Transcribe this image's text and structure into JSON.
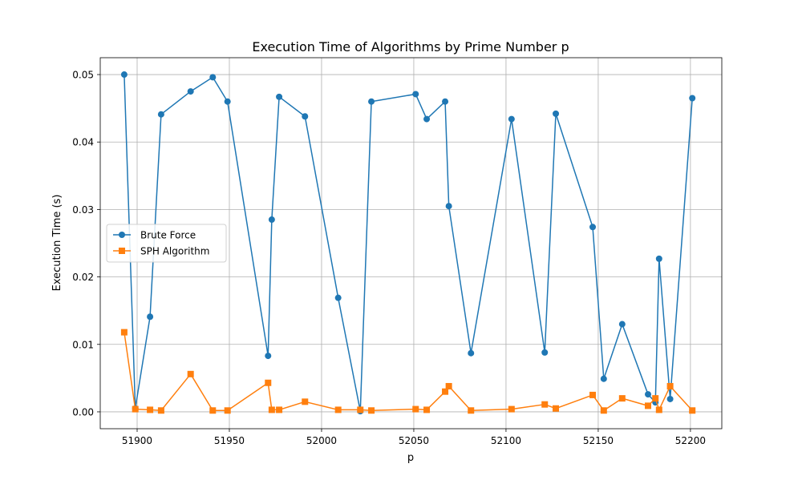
{
  "chart_data": {
    "type": "line",
    "title": "Execution Time of Algorithms by Prime Number p",
    "xlabel": "p",
    "ylabel": "Execution Time (s)",
    "xlim": [
      51880,
      52217
    ],
    "ylim": [
      -0.0025,
      0.0525
    ],
    "xticks": [
      51900,
      51950,
      52000,
      52050,
      52100,
      52150,
      52200
    ],
    "yticks": [
      0.0,
      0.01,
      0.02,
      0.03,
      0.04,
      0.05
    ],
    "grid": true,
    "legend_position": "center-left",
    "x": [
      51893,
      51899,
      51907,
      51913,
      51929,
      51941,
      51949,
      51971,
      51973,
      51977,
      51991,
      52009,
      52021,
      52027,
      52051,
      52057,
      52067,
      52069,
      52081,
      52103,
      52121,
      52127,
      52147,
      52153,
      52163,
      52177,
      52181,
      52183,
      52189,
      52201
    ],
    "series": [
      {
        "name": "Brute Force",
        "color": "#1f77b4",
        "marker": "circle",
        "values": [
          0.05,
          0.0005,
          0.0141,
          0.0441,
          0.0475,
          0.0496,
          0.046,
          0.0083,
          0.0285,
          0.0467,
          0.0438,
          0.0169,
          0.0001,
          0.046,
          0.0471,
          0.0434,
          0.046,
          0.0305,
          0.0087,
          0.0434,
          0.0088,
          0.0442,
          0.0274,
          0.0049,
          0.013,
          0.0026,
          0.0014,
          0.0227,
          0.0019,
          0.0465
        ]
      },
      {
        "name": "SPH Algorithm",
        "color": "#ff7f0e",
        "marker": "square",
        "values": [
          0.0118,
          0.0004,
          0.0003,
          0.0002,
          0.0056,
          0.0002,
          0.0002,
          0.0043,
          0.0003,
          0.0003,
          0.0015,
          0.0003,
          0.0003,
          0.0002,
          0.0004,
          0.0003,
          0.003,
          0.0038,
          0.0002,
          0.0004,
          0.0011,
          0.0005,
          0.0025,
          0.0002,
          0.002,
          0.0009,
          0.002,
          0.0003,
          0.0038,
          0.0002
        ]
      }
    ]
  }
}
